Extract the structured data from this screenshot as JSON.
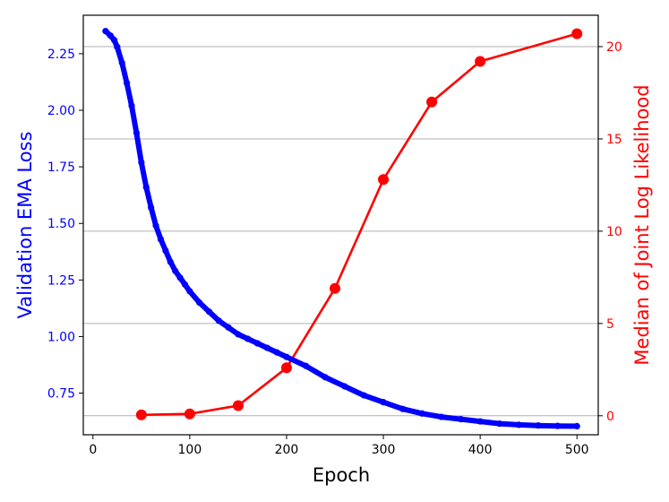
{
  "chart_data": {
    "type": "line",
    "xlabel": "Epoch",
    "xlim": [
      -10,
      522
    ],
    "xticks": [
      0,
      100,
      200,
      300,
      400,
      500
    ],
    "grid": "horizontal lines at right-axis ticks",
    "left_axis": {
      "label": "Validation EMA Loss",
      "color": "#0000ff",
      "ylim": [
        0.566,
        2.42
      ],
      "ticks": [
        "0.75",
        "1.00",
        "1.25",
        "1.50",
        "1.75",
        "2.00",
        "2.25"
      ]
    },
    "right_axis": {
      "label": "Median of Joint Log Likelihood",
      "color": "#ff0000",
      "ylim": [
        -1.03,
        21.7
      ],
      "ticks": [
        "0",
        "5",
        "10",
        "15",
        "20"
      ]
    },
    "series": [
      {
        "axis": "left",
        "color": "#0000ff",
        "style": "thick line with dense markers",
        "x": [
          13,
          18,
          22,
          25,
          30,
          35,
          40,
          45,
          50,
          55,
          60,
          65,
          70,
          75,
          80,
          85,
          90,
          95,
          100,
          110,
          120,
          130,
          140,
          150,
          160,
          170,
          180,
          190,
          200,
          220,
          240,
          260,
          280,
          300,
          320,
          340,
          360,
          380,
          400,
          420,
          440,
          460,
          480,
          500
        ],
        "y": [
          2.35,
          2.33,
          2.31,
          2.28,
          2.21,
          2.12,
          2.02,
          1.9,
          1.77,
          1.66,
          1.57,
          1.49,
          1.43,
          1.38,
          1.33,
          1.29,
          1.26,
          1.23,
          1.2,
          1.15,
          1.11,
          1.07,
          1.04,
          1.01,
          0.99,
          0.97,
          0.95,
          0.93,
          0.91,
          0.87,
          0.82,
          0.78,
          0.74,
          0.71,
          0.68,
          0.66,
          0.645,
          0.635,
          0.625,
          0.615,
          0.61,
          0.607,
          0.605,
          0.604
        ]
      },
      {
        "axis": "right",
        "color": "#ff0000",
        "style": "line with circle markers",
        "x": [
          50,
          100,
          150,
          200,
          250,
          300,
          350,
          400,
          500
        ],
        "y": [
          0.05,
          0.1,
          0.55,
          2.6,
          6.9,
          12.8,
          17.0,
          19.2,
          20.7
        ]
      }
    ]
  }
}
